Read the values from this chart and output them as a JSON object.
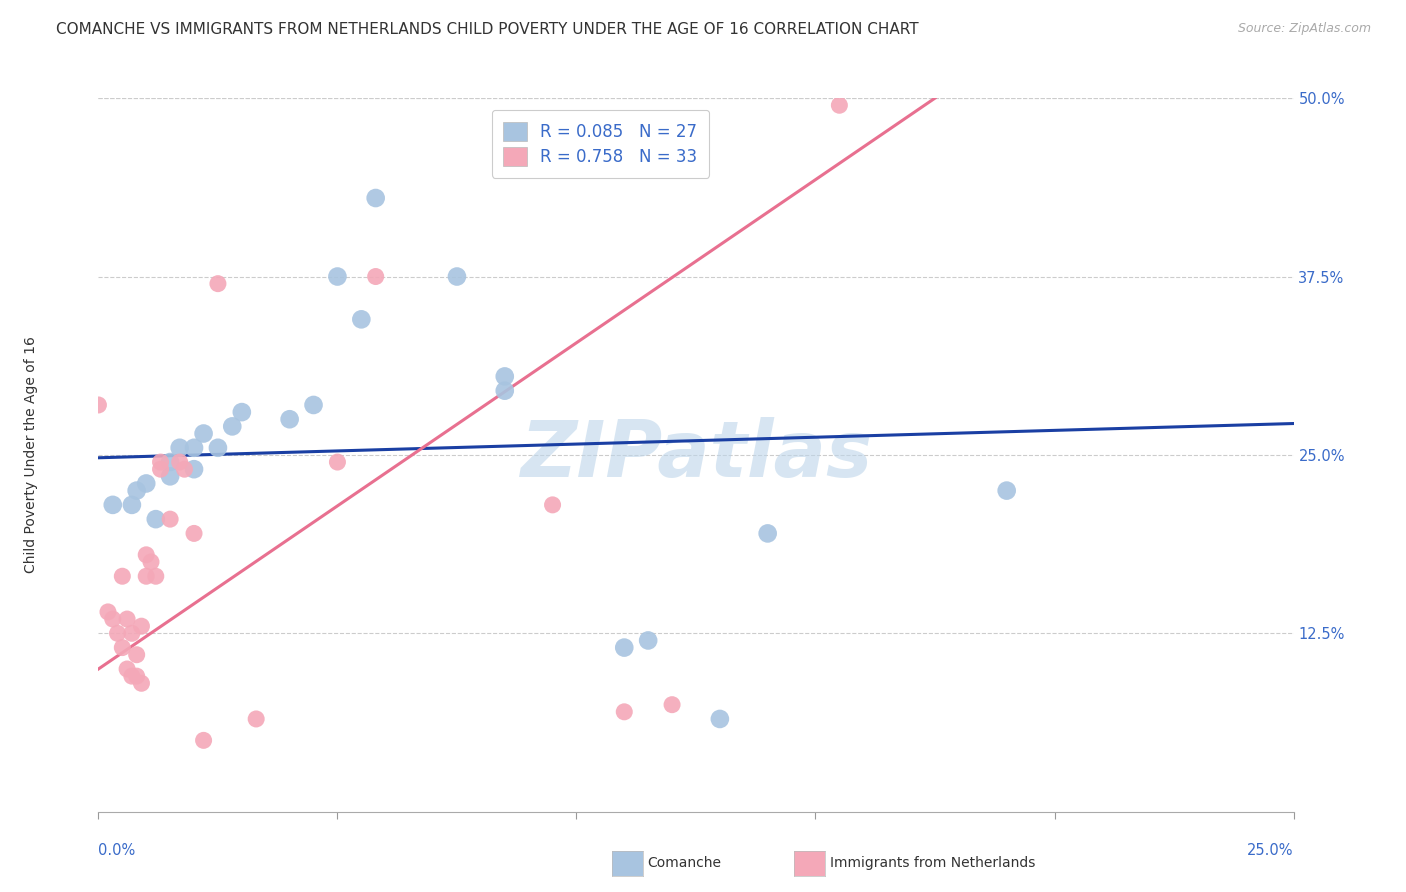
{
  "title": "COMANCHE VS IMMIGRANTS FROM NETHERLANDS CHILD POVERTY UNDER THE AGE OF 16 CORRELATION CHART",
  "source": "Source: ZipAtlas.com",
  "ylabel": "Child Poverty Under the Age of 16",
  "xlim": [
    0.0,
    0.25
  ],
  "ylim": [
    0.0,
    0.5
  ],
  "ytick_vals": [
    0.0,
    0.125,
    0.25,
    0.375,
    0.5
  ],
  "legend_blue_label": "Comanche",
  "legend_pink_label": "Immigrants from Netherlands",
  "R_blue": "0.085",
  "N_blue": "27",
  "R_pink": "0.758",
  "N_pink": "33",
  "watermark": "ZIPatlas",
  "blue_color": "#a8c4e0",
  "pink_color": "#f4a8b8",
  "line_blue": "#1a3fa3",
  "line_pink": "#e87090",
  "blue_scatter": [
    [
      0.003,
      0.215
    ],
    [
      0.007,
      0.215
    ],
    [
      0.008,
      0.225
    ],
    [
      0.01,
      0.23
    ],
    [
      0.012,
      0.205
    ],
    [
      0.015,
      0.245
    ],
    [
      0.015,
      0.235
    ],
    [
      0.017,
      0.255
    ],
    [
      0.02,
      0.255
    ],
    [
      0.02,
      0.24
    ],
    [
      0.022,
      0.265
    ],
    [
      0.025,
      0.255
    ],
    [
      0.028,
      0.27
    ],
    [
      0.03,
      0.28
    ],
    [
      0.04,
      0.275
    ],
    [
      0.045,
      0.285
    ],
    [
      0.05,
      0.375
    ],
    [
      0.055,
      0.345
    ],
    [
      0.058,
      0.43
    ],
    [
      0.075,
      0.375
    ],
    [
      0.085,
      0.305
    ],
    [
      0.085,
      0.295
    ],
    [
      0.11,
      0.115
    ],
    [
      0.115,
      0.12
    ],
    [
      0.13,
      0.065
    ],
    [
      0.14,
      0.195
    ],
    [
      0.19,
      0.225
    ]
  ],
  "pink_scatter": [
    [
      0.0,
      0.285
    ],
    [
      0.002,
      0.14
    ],
    [
      0.003,
      0.135
    ],
    [
      0.004,
      0.125
    ],
    [
      0.005,
      0.115
    ],
    [
      0.005,
      0.165
    ],
    [
      0.006,
      0.135
    ],
    [
      0.006,
      0.1
    ],
    [
      0.007,
      0.095
    ],
    [
      0.007,
      0.125
    ],
    [
      0.008,
      0.11
    ],
    [
      0.008,
      0.095
    ],
    [
      0.009,
      0.09
    ],
    [
      0.009,
      0.13
    ],
    [
      0.01,
      0.18
    ],
    [
      0.01,
      0.165
    ],
    [
      0.011,
      0.175
    ],
    [
      0.012,
      0.165
    ],
    [
      0.013,
      0.24
    ],
    [
      0.013,
      0.245
    ],
    [
      0.015,
      0.205
    ],
    [
      0.017,
      0.245
    ],
    [
      0.018,
      0.24
    ],
    [
      0.02,
      0.195
    ],
    [
      0.022,
      0.05
    ],
    [
      0.025,
      0.37
    ],
    [
      0.033,
      0.065
    ],
    [
      0.05,
      0.245
    ],
    [
      0.058,
      0.375
    ],
    [
      0.095,
      0.215
    ],
    [
      0.11,
      0.07
    ],
    [
      0.12,
      0.075
    ],
    [
      0.155,
      0.495
    ]
  ],
  "blue_line_x": [
    0.0,
    0.25
  ],
  "blue_line_y": [
    0.248,
    0.272
  ],
  "pink_line_x": [
    0.0,
    0.175
  ],
  "pink_line_y": [
    0.1,
    0.5
  ],
  "title_fontsize": 11,
  "axis_label_fontsize": 10,
  "tick_fontsize": 10.5
}
